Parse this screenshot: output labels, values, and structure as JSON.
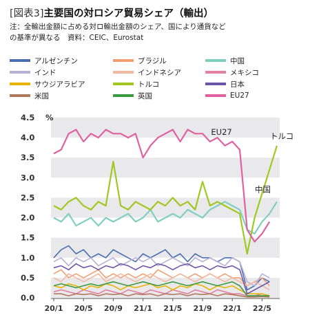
{
  "header": {
    "tag": "[図表3]",
    "title": "主要国の対ロシア貿易シェア（輸出）",
    "note1": "注：全輸出金額に占める対ロ輸出金額のシェア、国により通貨など",
    "note2": "の基準が異なる　資料：CEIC、Eurostat"
  },
  "chart_data": {
    "type": "line",
    "ylabel_unit": "%",
    "ylim": [
      0,
      4.5
    ],
    "yticks": [
      "4.5",
      "4.0",
      "3.5",
      "3.0",
      "2.5",
      "2.0",
      "1.5",
      "1.0",
      "0.5",
      "0.0"
    ],
    "xticks": [
      "20/1",
      "20/5",
      "20/9",
      "21/1",
      "21/5",
      "21/9",
      "22/1",
      "22/5"
    ],
    "x": [
      "2020-01",
      "2020-02",
      "2020-03",
      "2020-04",
      "2020-05",
      "2020-06",
      "2020-07",
      "2020-08",
      "2020-09",
      "2020-10",
      "2020-11",
      "2020-12",
      "2021-01",
      "2021-02",
      "2021-03",
      "2021-04",
      "2021-05",
      "2021-06",
      "2021-07",
      "2021-08",
      "2021-09",
      "2021-10",
      "2021-11",
      "2021-12",
      "2022-01",
      "2022-02",
      "2022-03",
      "2022-04",
      "2022-05",
      "2022-06",
      "2022-07"
    ],
    "series": [
      {
        "name": "アルゼンチン",
        "color": "#4a6fb0",
        "values": [
          1.0,
          1.2,
          1.3,
          1.1,
          1.2,
          1.0,
          1.1,
          1.0,
          1.2,
          1.1,
          1.0,
          0.9,
          1.1,
          1.0,
          1.1,
          1.2,
          1.0,
          1.1,
          0.9,
          1.1,
          1.0,
          1.0,
          0.9,
          1.0,
          1.0,
          0.9,
          0.2,
          0.3,
          0.5,
          0.4,
          null
        ]
      },
      {
        "name": "ブラジル",
        "color": "#f0a070",
        "values": [
          0.6,
          0.7,
          0.5,
          0.6,
          0.5,
          0.6,
          0.7,
          0.5,
          0.6,
          0.5,
          0.6,
          0.5,
          0.6,
          0.5,
          0.7,
          0.6,
          0.5,
          0.6,
          0.5,
          0.6,
          0.5,
          0.6,
          0.5,
          0.6,
          0.5,
          0.5,
          0.3,
          0.4,
          0.5,
          0.3,
          null
        ]
      },
      {
        "name": "中国",
        "color": "#7fcfc0",
        "values": [
          2.0,
          1.9,
          2.1,
          1.8,
          1.9,
          2.0,
          1.8,
          2.0,
          1.9,
          2.0,
          2.1,
          1.9,
          2.0,
          2.2,
          1.9,
          2.0,
          2.1,
          2.0,
          2.2,
          2.1,
          2.0,
          2.2,
          2.3,
          2.4,
          2.3,
          2.2,
          1.7,
          1.6,
          1.9,
          2.1,
          2.4
        ]
      },
      {
        "name": "インド",
        "color": "#b8b0d8",
        "values": [
          0.9,
          1.0,
          0.8,
          1.0,
          0.9,
          1.0,
          0.8,
          0.9,
          1.0,
          0.8,
          0.9,
          1.0,
          0.9,
          1.0,
          0.8,
          0.9,
          1.0,
          0.9,
          0.8,
          1.0,
          0.9,
          1.0,
          0.9,
          0.8,
          1.0,
          0.9,
          0.4,
          0.3,
          0.6,
          0.5,
          null
        ]
      },
      {
        "name": "インドネシア",
        "color": "#f2b8a0",
        "values": [
          0.5,
          0.4,
          0.6,
          0.5,
          0.4,
          0.5,
          0.6,
          0.4,
          0.5,
          0.6,
          0.5,
          0.4,
          0.5,
          0.6,
          0.5,
          0.4,
          0.5,
          0.6,
          0.5,
          0.4,
          0.5,
          0.6,
          0.5,
          0.4,
          0.5,
          0.4,
          0.3,
          0.4,
          0.3,
          0.2,
          null
        ]
      },
      {
        "name": "メキシコ",
        "color": "#e57fa0",
        "values": [
          0.15,
          0.2,
          0.15,
          0.1,
          0.2,
          0.15,
          0.1,
          0.2,
          0.15,
          0.1,
          0.2,
          0.15,
          0.1,
          0.2,
          0.15,
          0.1,
          0.2,
          0.15,
          0.1,
          0.2,
          0.15,
          0.1,
          0.2,
          0.15,
          0.1,
          0.1,
          0.05,
          0.05,
          0.1,
          0.05,
          null
        ]
      },
      {
        "name": "サウジアラビア",
        "color": "#e8b400",
        "values": [
          0.3,
          0.25,
          0.35,
          0.3,
          0.2,
          0.3,
          0.25,
          0.35,
          0.3,
          0.2,
          0.3,
          0.25,
          0.3,
          0.35,
          0.25,
          0.3,
          0.2,
          0.3,
          0.25,
          0.35,
          0.3,
          0.2,
          0.3,
          0.25,
          0.3,
          0.2,
          0.1,
          0.1,
          0.1,
          0.05,
          null
        ]
      },
      {
        "name": "トルコ",
        "color": "#a0c820",
        "values": [
          2.3,
          2.2,
          2.4,
          2.5,
          2.3,
          2.2,
          2.4,
          2.3,
          3.4,
          2.3,
          2.2,
          2.4,
          2.3,
          2.2,
          2.4,
          2.3,
          2.5,
          2.3,
          2.4,
          2.2,
          2.9,
          2.3,
          2.4,
          2.3,
          2.2,
          2.1,
          1.1,
          2.0,
          2.6,
          3.2,
          3.8
        ]
      },
      {
        "name": "日本",
        "color": "#6a56a8",
        "values": [
          0.75,
          0.8,
          0.7,
          0.85,
          0.75,
          0.8,
          0.7,
          0.8,
          0.75,
          0.85,
          0.8,
          0.7,
          0.8,
          0.75,
          0.85,
          0.8,
          0.7,
          0.8,
          0.85,
          0.75,
          0.8,
          0.7,
          0.8,
          0.75,
          0.8,
          0.7,
          0.1,
          0.2,
          0.3,
          0.4,
          null
        ]
      },
      {
        "name": "米国",
        "color": "#b07a5a",
        "values": [
          0.1,
          0.1,
          0.05,
          0.1,
          0.08,
          0.1,
          0.05,
          0.1,
          0.08,
          0.1,
          0.05,
          0.1,
          0.08,
          0.1,
          0.05,
          0.1,
          0.08,
          0.1,
          0.05,
          0.1,
          0.08,
          0.1,
          0.05,
          0.1,
          0.08,
          0.05,
          0.02,
          0.02,
          0.03,
          0.02,
          null
        ]
      },
      {
        "name": "英国",
        "color": "#3a9a40",
        "values": [
          0.3,
          0.35,
          0.3,
          0.25,
          0.3,
          0.35,
          0.3,
          0.35,
          0.4,
          0.35,
          0.3,
          0.35,
          0.4,
          0.35,
          0.3,
          0.35,
          0.4,
          0.35,
          0.3,
          0.35,
          0.4,
          0.35,
          0.3,
          0.35,
          0.4,
          0.3,
          0.05,
          0.05,
          0.05,
          0.05,
          null
        ]
      },
      {
        "name": "EU27",
        "color": "#e060a0",
        "values": [
          3.6,
          3.7,
          4.1,
          4.2,
          3.9,
          4.1,
          4.0,
          4.2,
          4.1,
          4.1,
          4.0,
          4.1,
          3.5,
          3.8,
          4.0,
          4.1,
          4.2,
          3.9,
          4.2,
          4.1,
          4.1,
          3.9,
          4.0,
          3.8,
          3.9,
          3.7,
          1.7,
          1.4,
          1.6,
          1.9,
          null
        ]
      }
    ],
    "legend_placement": "top",
    "annotations": [
      {
        "text": "EU27",
        "series": "EU27"
      },
      {
        "text": "トルコ",
        "series": "トルコ"
      },
      {
        "text": "中国",
        "series": "中国"
      }
    ],
    "grid": "alternating horizontal bands"
  }
}
